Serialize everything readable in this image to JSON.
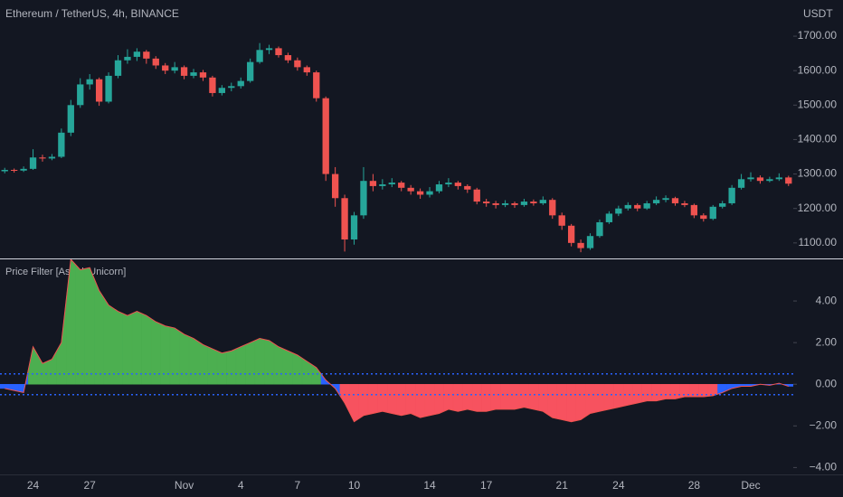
{
  "chart_data": [
    {
      "type": "candlestick",
      "title": "Ethereum / TetherUS, 4h, BINANCE",
      "y_axis_label": "USDT",
      "categories": [
        null,
        null,
        null,
        "24",
        null,
        null,
        null,
        null,
        null,
        "27",
        null,
        null,
        null,
        null,
        null,
        null,
        null,
        null,
        null,
        "Nov",
        null,
        null,
        null,
        null,
        null,
        "4",
        null,
        null,
        null,
        null,
        null,
        "7",
        null,
        null,
        null,
        null,
        null,
        "10",
        null,
        null,
        null,
        null,
        null,
        null,
        null,
        "14",
        null,
        null,
        null,
        null,
        null,
        "17",
        null,
        null,
        null,
        null,
        null,
        null,
        null,
        "21",
        null,
        null,
        null,
        null,
        null,
        "24",
        null,
        null,
        null,
        null,
        null,
        null,
        null,
        "28",
        null,
        null,
        null,
        null,
        null,
        "Dec",
        null,
        null,
        null,
        null
      ],
      "open": [
        1308,
        1312,
        1310,
        1315,
        1348,
        1345,
        1350,
        1420,
        1500,
        1560,
        1575,
        1510,
        1585,
        1630,
        1640,
        1655,
        1635,
        1615,
        1600,
        1610,
        1585,
        1595,
        1580,
        1535,
        1550,
        1555,
        1570,
        1625,
        1660,
        1665,
        1645,
        1630,
        1610,
        1595,
        1520,
        1300,
        1230,
        1110,
        1180,
        1280,
        1265,
        1270,
        1275,
        1260,
        1250,
        1240,
        1250,
        1270,
        1275,
        1265,
        1255,
        1220,
        1215,
        1210,
        1215,
        1210,
        1220,
        1215,
        1225,
        1180,
        1150,
        1100,
        1085,
        1120,
        1160,
        1185,
        1200,
        1210,
        1200,
        1215,
        1225,
        1230,
        1215,
        1210,
        1180,
        1170,
        1205,
        1215,
        1260,
        1285,
        1290,
        1280,
        1285,
        1290
      ],
      "high": [
        1318,
        1316,
        1322,
        1372,
        1356,
        1358,
        1432,
        1515,
        1578,
        1590,
        1580,
        1595,
        1645,
        1662,
        1665,
        1660,
        1642,
        1622,
        1625,
        1615,
        1605,
        1602,
        1585,
        1558,
        1565,
        1580,
        1635,
        1680,
        1675,
        1670,
        1652,
        1638,
        1615,
        1600,
        1525,
        1320,
        1240,
        1190,
        1320,
        1300,
        1285,
        1288,
        1280,
        1268,
        1258,
        1262,
        1280,
        1288,
        1280,
        1270,
        1260,
        1228,
        1222,
        1224,
        1220,
        1228,
        1226,
        1235,
        1230,
        1188,
        1155,
        1110,
        1128,
        1168,
        1192,
        1208,
        1218,
        1215,
        1222,
        1235,
        1238,
        1234,
        1222,
        1214,
        1186,
        1210,
        1222,
        1268,
        1300,
        1305,
        1296,
        1292,
        1302,
        1295
      ],
      "low": [
        1302,
        1304,
        1306,
        1312,
        1336,
        1340,
        1346,
        1410,
        1492,
        1545,
        1498,
        1505,
        1578,
        1620,
        1628,
        1620,
        1605,
        1590,
        1592,
        1575,
        1578,
        1570,
        1525,
        1528,
        1540,
        1548,
        1565,
        1620,
        1648,
        1638,
        1622,
        1600,
        1585,
        1510,
        1280,
        1205,
        1075,
        1095,
        1170,
        1250,
        1255,
        1262,
        1250,
        1240,
        1228,
        1232,
        1244,
        1262,
        1255,
        1245,
        1212,
        1205,
        1200,
        1204,
        1202,
        1205,
        1208,
        1210,
        1170,
        1138,
        1090,
        1073,
        1080,
        1115,
        1155,
        1178,
        1194,
        1192,
        1196,
        1210,
        1218,
        1208,
        1204,
        1172,
        1162,
        1166,
        1200,
        1210,
        1255,
        1278,
        1272,
        1276,
        1280,
        1265
      ],
      "close": [
        1312,
        1310,
        1315,
        1348,
        1345,
        1350,
        1420,
        1500,
        1560,
        1575,
        1510,
        1585,
        1630,
        1640,
        1655,
        1635,
        1615,
        1600,
        1610,
        1585,
        1595,
        1580,
        1535,
        1550,
        1555,
        1570,
        1625,
        1660,
        1665,
        1645,
        1630,
        1610,
        1595,
        1520,
        1300,
        1230,
        1110,
        1180,
        1280,
        1265,
        1270,
        1275,
        1260,
        1250,
        1240,
        1250,
        1270,
        1275,
        1265,
        1255,
        1220,
        1215,
        1210,
        1215,
        1210,
        1220,
        1215,
        1225,
        1180,
        1150,
        1100,
        1085,
        1120,
        1160,
        1185,
        1200,
        1210,
        1200,
        1215,
        1225,
        1230,
        1215,
        1210,
        1180,
        1170,
        1205,
        1215,
        1260,
        1285,
        1290,
        1280,
        1285,
        1290,
        1272
      ],
      "up_color": "#26a69a",
      "down_color": "#ef5350",
      "ylim": [
        1055,
        1805
      ],
      "yticks": [
        {
          "value": 1100,
          "label": "1100.00"
        },
        {
          "value": 1200,
          "label": "1200.00"
        },
        {
          "value": 1300,
          "label": "1300.00"
        },
        {
          "value": 1400,
          "label": "1400.00"
        },
        {
          "value": 1500,
          "label": "1500.00"
        },
        {
          "value": 1600,
          "label": "1600.00"
        },
        {
          "value": 1700,
          "label": "1700.00"
        }
      ]
    },
    {
      "type": "area",
      "title": "Price Filter [AstridsUnicorn]",
      "values": [
        -0.2,
        -0.3,
        -0.4,
        1.8,
        1.0,
        1.2,
        2.0,
        6.0,
        5.5,
        5.6,
        4.5,
        3.8,
        3.5,
        3.3,
        3.5,
        3.3,
        3.0,
        2.8,
        2.7,
        2.4,
        2.2,
        1.9,
        1.7,
        1.5,
        1.6,
        1.8,
        2.0,
        2.2,
        2.1,
        1.8,
        1.6,
        1.4,
        1.1,
        0.8,
        0.2,
        -0.2,
        -0.9,
        -1.8,
        -1.5,
        -1.4,
        -1.3,
        -1.4,
        -1.5,
        -1.4,
        -1.6,
        -1.5,
        -1.4,
        -1.2,
        -1.3,
        -1.2,
        -1.3,
        -1.3,
        -1.2,
        -1.2,
        -1.2,
        -1.1,
        -1.2,
        -1.3,
        -1.6,
        -1.7,
        -1.8,
        -1.7,
        -1.4,
        -1.3,
        -1.2,
        -1.1,
        -1.0,
        -0.9,
        -0.8,
        -0.8,
        -0.7,
        -0.7,
        -0.6,
        -0.6,
        -0.6,
        -0.55,
        -0.4,
        -0.2,
        -0.1,
        -0.1,
        0.0,
        -0.05,
        0.05,
        -0.1
      ],
      "upper_band": 0.5,
      "lower_band": -0.5,
      "above_color": "#4caf50",
      "below_color": "#f7525f",
      "neutral_color": "#2962ff",
      "line_color": "#ef5350",
      "ylim": [
        -4.33,
        6
      ],
      "yticks": [
        {
          "value": -4,
          "label": "−4.00"
        },
        {
          "value": -2,
          "label": "−2.00"
        },
        {
          "value": 0,
          "label": "0.00"
        },
        {
          "value": 2,
          "label": "2.00"
        },
        {
          "value": 4,
          "label": "4.00"
        }
      ]
    }
  ]
}
